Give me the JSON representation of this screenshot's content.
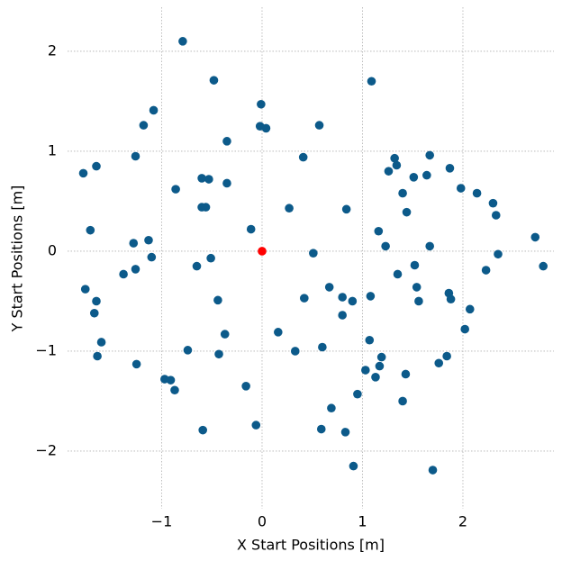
{
  "chart_data": {
    "type": "scatter",
    "xlabel": "X Start Positions [m]",
    "ylabel": "Y Start Positions [m]",
    "xlim": [
      -1.937,
      2.906
    ],
    "ylim": [
      -2.577,
      2.441
    ],
    "xticks": [
      {
        "value": -1,
        "label": "−1"
      },
      0,
      1,
      2
    ],
    "yticks": [
      {
        "value": -2,
        "label": "−2"
      },
      {
        "value": -1,
        "label": "−1"
      },
      0,
      1,
      2
    ],
    "grid": true,
    "series": [
      {
        "color": "#0c5a8a",
        "x": [
          -0.79,
          -0.48,
          -0.01,
          1.09,
          -1.08,
          -1.18,
          -0.02,
          0.04,
          0.57,
          -0.35,
          -1.26,
          -1.78,
          -1.65,
          0.41,
          1.32,
          1.34,
          1.67,
          1.26,
          1.87,
          1.51,
          1.64,
          -0.6,
          -0.53,
          -0.35,
          -0.86,
          1.98,
          2.14,
          1.4,
          2.3,
          -0.6,
          -0.56,
          0.27,
          0.84,
          1.44,
          2.33,
          -1.71,
          -0.11,
          1.16,
          2.72,
          -1.13,
          -1.28,
          1.23,
          1.67,
          0.51,
          2.35,
          -1.1,
          -0.51,
          -0.65,
          1.52,
          2.8,
          -1.26,
          2.23,
          -1.38,
          1.35,
          -1.76,
          0.67,
          1.54,
          1.86,
          1.08,
          0.42,
          0.8,
          1.88,
          -0.44,
          0.9,
          -1.65,
          1.56,
          -1.67,
          2.07,
          0.8,
          2.02,
          0.16,
          -0.37,
          -1.6,
          1.07,
          0.6,
          -0.74,
          0.33,
          -0.43,
          -1.64,
          1.84,
          1.19,
          -1.25,
          1.76,
          1.17,
          1.03,
          1.13,
          1.43,
          -0.97,
          -0.91,
          -0.16,
          -0.87,
          0.95,
          1.4,
          0.69,
          -0.06,
          -0.59,
          0.59,
          0.83,
          0.91,
          1.7
        ],
        "y": [
          2.1,
          1.71,
          1.47,
          1.7,
          1.41,
          1.26,
          1.25,
          1.23,
          1.26,
          1.1,
          0.95,
          0.78,
          0.85,
          0.94,
          0.93,
          0.86,
          0.96,
          0.8,
          0.83,
          0.74,
          0.76,
          0.73,
          0.72,
          0.68,
          0.62,
          0.63,
          0.58,
          0.58,
          0.48,
          0.44,
          0.44,
          0.43,
          0.42,
          0.39,
          0.36,
          0.21,
          0.22,
          0.2,
          0.14,
          0.11,
          0.08,
          0.05,
          0.05,
          -0.02,
          -0.03,
          -0.06,
          -0.07,
          -0.15,
          -0.14,
          -0.15,
          -0.18,
          -0.19,
          -0.23,
          -0.23,
          -0.38,
          -0.36,
          -0.36,
          -0.42,
          -0.45,
          -0.47,
          -0.46,
          -0.48,
          -0.49,
          -0.5,
          -0.5,
          -0.5,
          -0.62,
          -0.58,
          -0.64,
          -0.78,
          -0.81,
          -0.83,
          -0.91,
          -0.89,
          -0.96,
          -0.99,
          -1.0,
          -1.03,
          -1.05,
          -1.05,
          -1.06,
          -1.13,
          -1.12,
          -1.15,
          -1.19,
          -1.26,
          -1.23,
          -1.28,
          -1.29,
          -1.35,
          -1.39,
          -1.43,
          -1.5,
          -1.57,
          -1.74,
          -1.79,
          -1.78,
          -1.81,
          -2.15,
          -2.19
        ]
      },
      {
        "color": "#ff0000",
        "x": [
          0
        ],
        "y": [
          0
        ]
      }
    ]
  }
}
